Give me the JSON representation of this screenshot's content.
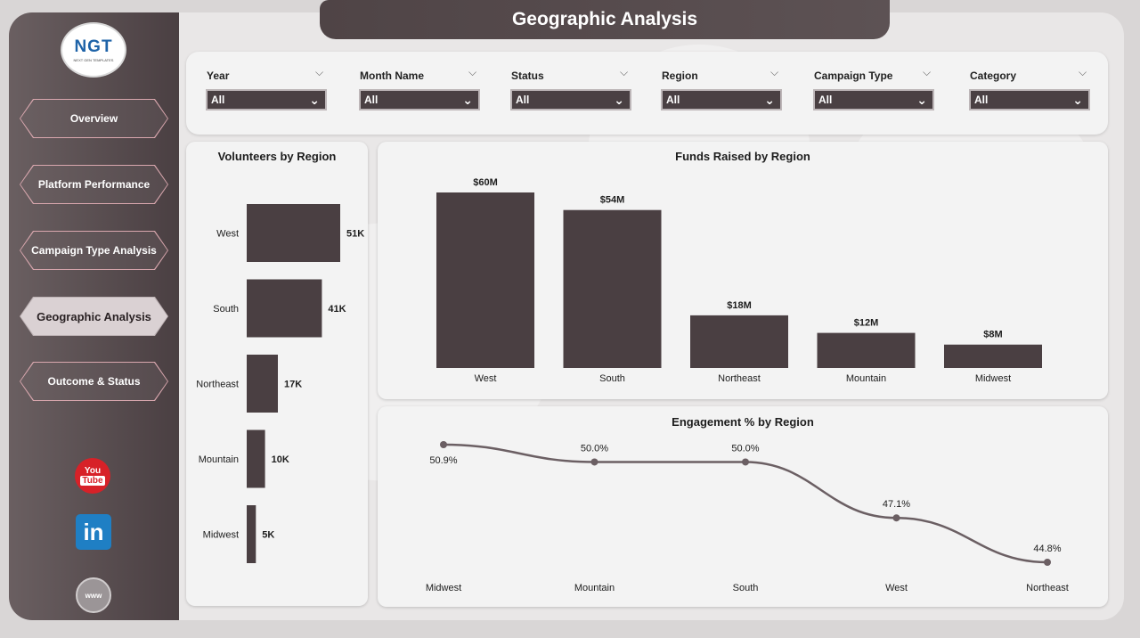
{
  "header": {
    "title": "Geographic Analysis"
  },
  "logo": {
    "text": "NGT",
    "subtext": "NEXT GEN TEMPLATES"
  },
  "nav": [
    {
      "label": "Overview",
      "active": false
    },
    {
      "label": "Platform Performance",
      "active": false
    },
    {
      "label": "Campaign Type Analysis",
      "active": false
    },
    {
      "label": "Geographic Analysis",
      "active": true
    },
    {
      "label": "Outcome & Status",
      "active": false
    }
  ],
  "social": {
    "youtube_top": "You",
    "youtube_bottom": "Tube",
    "linkedin": "in",
    "website": "www"
  },
  "filters": [
    {
      "label": "Year",
      "value": "All"
    },
    {
      "label": "Month Name",
      "value": "All"
    },
    {
      "label": "Status",
      "value": "All"
    },
    {
      "label": "Region",
      "value": "All"
    },
    {
      "label": "Campaign Type",
      "value": "All"
    },
    {
      "label": "Category",
      "value": "All"
    }
  ],
  "colors": {
    "bar": "#4a3f42",
    "line": "#6b5f63",
    "sidebar": "#5a4f52"
  },
  "chart_data": [
    {
      "type": "bar",
      "orientation": "horizontal",
      "title": "Volunteers by Region",
      "categories": [
        "West",
        "South",
        "Northeast",
        "Mountain",
        "Midwest"
      ],
      "values": [
        51,
        41,
        17,
        10,
        5
      ],
      "data_labels": [
        "51K",
        "41K",
        "17K",
        "10K",
        "5K"
      ],
      "unit": "K"
    },
    {
      "type": "bar",
      "title": "Funds Raised by Region",
      "categories": [
        "West",
        "South",
        "Northeast",
        "Mountain",
        "Midwest"
      ],
      "values": [
        60,
        54,
        18,
        12,
        8
      ],
      "data_labels": [
        "$60M",
        "$54M",
        "$18M",
        "$12M",
        "$8M"
      ],
      "unit": "$M"
    },
    {
      "type": "line",
      "title": "Engagement % by Region",
      "categories": [
        "Midwest",
        "Mountain",
        "South",
        "West",
        "Northeast"
      ],
      "values": [
        50.9,
        50.0,
        50.0,
        47.1,
        44.8
      ],
      "data_labels": [
        "50.9%",
        "50.0%",
        "50.0%",
        "47.1%",
        "44.8%"
      ]
    }
  ]
}
